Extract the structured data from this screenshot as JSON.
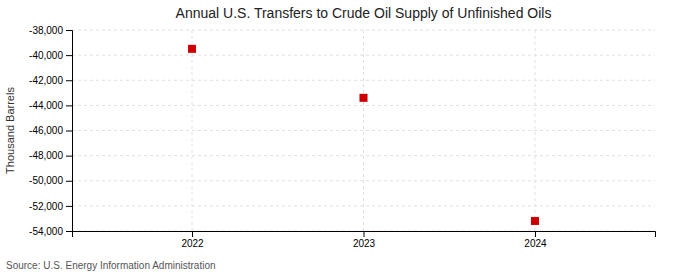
{
  "chart_data": {
    "type": "scatter",
    "title": "Annual U.S. Transfers to Crude Oil Supply of Unfinished Oils",
    "ylabel": "Thousand Barrels",
    "source": "Source: U.S. Energy Information Administration",
    "x": [
      2022,
      2023,
      2024
    ],
    "values": [
      -39500,
      -43400,
      -53200
    ],
    "xlim": [
      2021.3,
      2024.7
    ],
    "xticks": [
      2022,
      2023,
      2024
    ],
    "ylim": [
      -54000,
      -38000
    ],
    "yticks": [
      {
        "value": -38000,
        "label": "-38,000"
      },
      {
        "value": -40000,
        "label": "-40,000"
      },
      {
        "value": -42000,
        "label": "-42,000"
      },
      {
        "value": -44000,
        "label": "-44,000"
      },
      {
        "value": -46000,
        "label": "-46,000"
      },
      {
        "value": -48000,
        "label": "-48,000"
      },
      {
        "value": -50000,
        "label": "-50,000"
      },
      {
        "value": -52000,
        "label": "-52,000"
      },
      {
        "value": -54000,
        "label": "-54,000"
      }
    ],
    "color": "#cc0000",
    "marker": "square",
    "grid": true
  }
}
